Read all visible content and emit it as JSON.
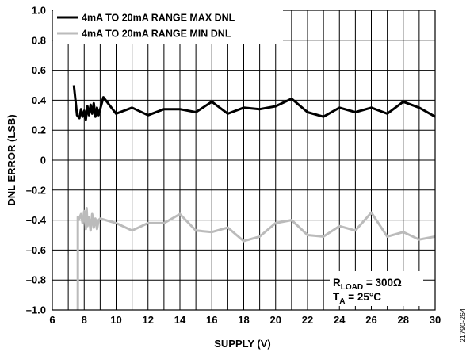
{
  "figure_id": "21790-264",
  "annotations": {
    "rload_main": "R",
    "rload_sub": "LOAD",
    "rload_value": " = 300Ω",
    "ta_main": "T",
    "ta_sub": "A",
    "ta_value": " = 25°C"
  },
  "chart_data": {
    "type": "line",
    "xlabel": "SUPPLY (V)",
    "ylabel": "DNL ERROR (LSB)",
    "xlim": [
      6,
      30
    ],
    "ylim": [
      -1.0,
      1.0
    ],
    "x_ticks": [
      6,
      8,
      10,
      12,
      14,
      16,
      18,
      20,
      22,
      24,
      26,
      28,
      30
    ],
    "x_tick_labels": [
      "6",
      "8",
      "10",
      "12",
      "14",
      "16",
      "18",
      "20",
      "22",
      "24",
      "26",
      "28",
      "30"
    ],
    "y_ticks": [
      -1.0,
      -0.8,
      -0.6,
      -0.4,
      -0.2,
      0,
      0.2,
      0.4,
      0.6,
      0.8,
      1.0
    ],
    "y_tick_labels": [
      "–1.0",
      "–0.8",
      "–0.6",
      "–0.4",
      "–0.2",
      "0",
      "0.2",
      "0.4",
      "0.6",
      "0.8",
      "1.0"
    ],
    "grid": true,
    "legend_position": "top-left",
    "series": [
      {
        "name": "4mA TO 20mA RANGE MAX DNL",
        "color": "#000000",
        "x": [
          7.35,
          7.55,
          7.7,
          7.8,
          7.9,
          8.0,
          8.1,
          8.2,
          8.3,
          8.4,
          8.5,
          8.6,
          8.7,
          8.8,
          8.9,
          9.0,
          9.2,
          10,
          11,
          12,
          13,
          14,
          15,
          16,
          17,
          18,
          19,
          20,
          21,
          22,
          23,
          24,
          25,
          26,
          27,
          28,
          29,
          30
        ],
        "y": [
          0.5,
          0.3,
          0.28,
          0.34,
          0.29,
          0.33,
          0.27,
          0.36,
          0.3,
          0.37,
          0.31,
          0.38,
          0.29,
          0.35,
          0.3,
          0.34,
          0.42,
          0.31,
          0.35,
          0.3,
          0.34,
          0.34,
          0.32,
          0.39,
          0.31,
          0.35,
          0.34,
          0.36,
          0.41,
          0.32,
          0.29,
          0.35,
          0.32,
          0.35,
          0.31,
          0.39,
          0.35,
          0.29
        ]
      },
      {
        "name": "4mA TO 20mA RANGE MIN DNL",
        "color": "#bbbbbb",
        "x": [
          7.6,
          7.6,
          7.65,
          7.8,
          7.9,
          8.0,
          8.1,
          8.15,
          8.2,
          8.3,
          8.4,
          8.5,
          8.6,
          8.7,
          8.8,
          8.9,
          9.0,
          10,
          11,
          12,
          13,
          14,
          15,
          16,
          17,
          18,
          19,
          20,
          21,
          22,
          23,
          24,
          25,
          26,
          27,
          28,
          29,
          30
        ],
        "y": [
          -1.0,
          -0.38,
          -0.4,
          -0.36,
          -0.42,
          -0.34,
          -0.46,
          -0.32,
          -0.44,
          -0.38,
          -0.47,
          -0.36,
          -0.45,
          -0.39,
          -0.46,
          -0.4,
          -0.39,
          -0.42,
          -0.47,
          -0.42,
          -0.42,
          -0.36,
          -0.47,
          -0.48,
          -0.45,
          -0.54,
          -0.51,
          -0.42,
          -0.4,
          -0.5,
          -0.51,
          -0.44,
          -0.47,
          -0.35,
          -0.51,
          -0.48,
          -0.53,
          -0.51
        ]
      }
    ]
  }
}
